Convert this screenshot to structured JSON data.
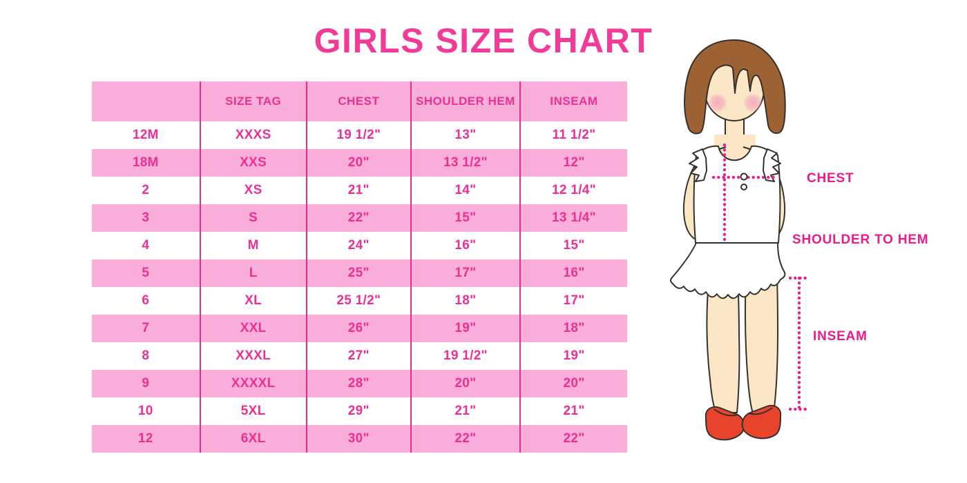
{
  "title": "GIRLS SIZE CHART",
  "chart_data": {
    "type": "table",
    "title": "GIRLS SIZE CHART",
    "columns": [
      "",
      "SIZE TAG",
      "CHEST",
      "SHOULDER HEM",
      "INSEAM"
    ],
    "rows": [
      [
        "12M",
        "XXXS",
        "19 1/2\"",
        "13\"",
        "11 1/2\""
      ],
      [
        "18M",
        "XXS",
        "20\"",
        "13 1/2\"",
        "12\""
      ],
      [
        "2",
        "XS",
        "21\"",
        "14\"",
        "12 1/4\""
      ],
      [
        "3",
        "S",
        "22\"",
        "15\"",
        "13 1/4\""
      ],
      [
        "4",
        "M",
        "24\"",
        "16\"",
        "15\""
      ],
      [
        "5",
        "L",
        "25\"",
        "17\"",
        "16\""
      ],
      [
        "6",
        "XL",
        "25 1/2\"",
        "18\"",
        "17\""
      ],
      [
        "7",
        "XXL",
        "26\"",
        "19\"",
        "18\""
      ],
      [
        "8",
        "XXXL",
        "27\"",
        "19 1/2\"",
        "19\""
      ],
      [
        "9",
        "XXXXL",
        "28\"",
        "20\"",
        "20\""
      ],
      [
        "10",
        "5XL",
        "29\"",
        "21\"",
        "21\""
      ],
      [
        "12",
        "6XL",
        "30\"",
        "22\"",
        "22\""
      ]
    ],
    "row_striping": "alternating white/pink starting white, header pink",
    "legend_position": "none",
    "grid": "vertical magenta column dividers only"
  },
  "diagram": {
    "description": "cartoon girl with bob haircut, white sleeveless top and ruffle skirt, red shoes, with dotted measurement guides",
    "labels": {
      "chest": "CHEST",
      "shoulder_to_hem": "SHOULDER TO HEM",
      "inseam": "INSEAM"
    }
  },
  "colors": {
    "title_pink": "#F23A96",
    "row_pink": "#F9AFD9",
    "cell_text_pink": "#EE2F92",
    "divider_magenta": "#E52D8F",
    "measure_magenta": "#EC1A8C",
    "hair_brown": "#9D6233",
    "skin": "#FBE7C6",
    "shoe_red": "#E8432C",
    "background": "#FFFFFF"
  }
}
